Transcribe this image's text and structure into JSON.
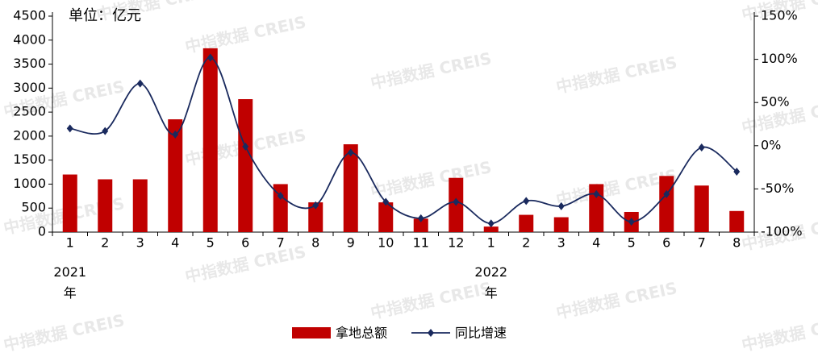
{
  "chart_data": {
    "type": "bar-line",
    "subtitle": "单位：亿元",
    "watermark": "中指数据 CREIS",
    "categories": [
      "1",
      "2",
      "3",
      "4",
      "5",
      "6",
      "7",
      "8",
      "9",
      "10",
      "11",
      "12",
      "1",
      "2",
      "3",
      "4",
      "5",
      "6",
      "7",
      "8"
    ],
    "years": [
      "2021年",
      "2022年"
    ],
    "series": [
      {
        "name": "拿地总额",
        "type": "bar",
        "color": "#c00000",
        "values": [
          1200,
          1100,
          1100,
          2350,
          3830,
          2770,
          1000,
          620,
          1830,
          620,
          280,
          1130,
          115,
          360,
          310,
          1000,
          420,
          1170,
          970,
          440
        ]
      },
      {
        "name": "同比增速",
        "type": "line",
        "axis": "y2",
        "color": "#1a2a5e",
        "values": [
          20,
          17,
          72,
          13,
          102,
          -1,
          -58,
          -69,
          -8,
          -65,
          -84,
          -65,
          -90,
          -64,
          -70,
          -56,
          -88,
          -56,
          -2,
          -30
        ]
      }
    ],
    "ylim": [
      0,
      4500
    ],
    "yticks": [
      0,
      500,
      1000,
      1500,
      2000,
      2500,
      3000,
      3500,
      4000,
      4500
    ],
    "y2lim": [
      -100,
      150
    ],
    "y2ticks": [
      {
        "value": -100,
        "label": "-100%"
      },
      {
        "value": -50,
        "label": "-50%"
      },
      {
        "value": 0,
        "label": "0%"
      },
      {
        "value": 50,
        "label": "50%"
      },
      {
        "value": 100,
        "label": "100%"
      },
      {
        "value": 150,
        "label": "150%"
      }
    ]
  }
}
